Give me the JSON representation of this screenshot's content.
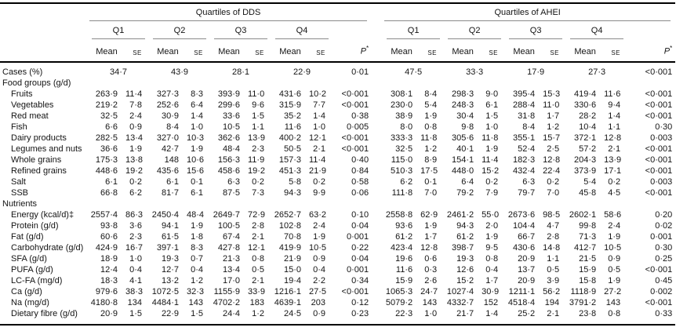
{
  "table": {
    "groups": [
      {
        "key": "dds",
        "label": "Quartiles of DDS"
      },
      {
        "key": "ahei",
        "label": "Quartiles of AHEI"
      }
    ],
    "quartiles": [
      "Q1",
      "Q2",
      "Q3",
      "Q4"
    ],
    "mean_header": "Mean",
    "se_header": "SE",
    "p_header": {
      "text": "P",
      "sup": "*"
    },
    "rows": [
      {
        "type": "cases",
        "label": "Cases (%)",
        "dds": [
          "34·7",
          "43·9",
          "28·1",
          "22·9"
        ],
        "dds_p": "0·01",
        "ahei": [
          "47·5",
          "33·3",
          "17·9",
          "27·3"
        ],
        "ahei_p": "<0·001"
      },
      {
        "type": "section",
        "label": "Food groups (g/d)"
      },
      {
        "type": "item",
        "label": "Fruits",
        "dds": [
          "263·9",
          "11·4",
          "327·3",
          "8·3",
          "393·9",
          "11·0",
          "431·6",
          "10·2"
        ],
        "dds_p": "<0·001",
        "ahei": [
          "308·1",
          "8·4",
          "298·3",
          "9·0",
          "395·4",
          "15·3",
          "419·4",
          "11·6"
        ],
        "ahei_p": "<0·001"
      },
      {
        "type": "item",
        "label": "Vegetables",
        "dds": [
          "219·2",
          "7·8",
          "252·6",
          "6·4",
          "299·6",
          "9·6",
          "315·9",
          "7·7"
        ],
        "dds_p": "<0·001",
        "ahei": [
          "230·0",
          "5·4",
          "248·3",
          "6·1",
          "288·4",
          "11·0",
          "330·6",
          "9·4"
        ],
        "ahei_p": "<0·001"
      },
      {
        "type": "item",
        "label": "Red meat",
        "dds": [
          "32·5",
          "2·4",
          "30·9",
          "1·4",
          "33·6",
          "1·5",
          "35·2",
          "1·4"
        ],
        "dds_p": "0·38",
        "ahei": [
          "38·9",
          "1·9",
          "30·4",
          "1·5",
          "31·8",
          "1·7",
          "28·2",
          "1·4"
        ],
        "ahei_p": "<0·001"
      },
      {
        "type": "item",
        "label": "Fish",
        "dds": [
          "6·6",
          "0·9",
          "8·4",
          "1·0",
          "10·5",
          "1·1",
          "11·6",
          "1·0"
        ],
        "dds_p": "0·005",
        "ahei": [
          "8·0",
          "0·8",
          "9·8",
          "1·0",
          "8·4",
          "1·2",
          "10·4",
          "1·1"
        ],
        "ahei_p": "0·30"
      },
      {
        "type": "item",
        "label": "Dairy products",
        "dds": [
          "282·5",
          "13·4",
          "327·0",
          "10·3",
          "362·6",
          "13·9",
          "400·2",
          "12·1"
        ],
        "dds_p": "<0·001",
        "ahei": [
          "333·3",
          "11·8",
          "305·6",
          "11·8",
          "355·1",
          "15·7",
          "372·1",
          "12·8"
        ],
        "ahei_p": "0·003"
      },
      {
        "type": "item",
        "label": "Legumes and nuts",
        "dds": [
          "36·6",
          "1·9",
          "42·7",
          "1·9",
          "48·4",
          "2·3",
          "50·5",
          "2·1"
        ],
        "dds_p": "<0·001",
        "ahei": [
          "32·5",
          "1·2",
          "40·1",
          "1·9",
          "52·4",
          "2·5",
          "57·2",
          "2·1"
        ],
        "ahei_p": "<0·001"
      },
      {
        "type": "item",
        "label": "Whole grains",
        "dds": [
          "175·3",
          "13·8",
          "148",
          "10·6",
          "156·3",
          "11·9",
          "157·3",
          "11·4"
        ],
        "dds_p": "0·40",
        "ahei": [
          "115·0",
          "8·9",
          "154·1",
          "11·4",
          "182·3",
          "12·8",
          "204·3",
          "13·9"
        ],
        "ahei_p": "<0·001"
      },
      {
        "type": "item",
        "label": "Refined grains",
        "dds": [
          "448·6",
          "19·2",
          "435·6",
          "15·6",
          "458·6",
          "19·2",
          "451·3",
          "21·9"
        ],
        "dds_p": "0·84",
        "ahei": [
          "510·3",
          "17·5",
          "448·0",
          "15·2",
          "432·4",
          "22·4",
          "373·9",
          "17·1"
        ],
        "ahei_p": "<0·001"
      },
      {
        "type": "item",
        "label": "Salt",
        "dds": [
          "6·1",
          "0·2",
          "6·1",
          "0·1",
          "6·3",
          "0·2",
          "5·8",
          "0·2"
        ],
        "dds_p": "0·58",
        "ahei": [
          "6·2",
          "0·1",
          "6·4",
          "0·2",
          "6·3",
          "0·2",
          "5·4",
          "0·2"
        ],
        "ahei_p": "0·003"
      },
      {
        "type": "item",
        "label": "SSB",
        "dds": [
          "66·8",
          "6·2",
          "81·7",
          "6·1",
          "87·5",
          "7·3",
          "94·3",
          "9·9"
        ],
        "dds_p": "0·06",
        "ahei": [
          "111·8",
          "7·0",
          "79·2",
          "7·9",
          "79·7",
          "7·0",
          "45·8",
          "4·5"
        ],
        "ahei_p": "<0·001"
      },
      {
        "type": "section",
        "label": "Nutrients"
      },
      {
        "type": "item",
        "label": "Energy (kcal/d)‡",
        "dds": [
          "2557·4",
          "86·3",
          "2450·4",
          "48·4",
          "2649·7",
          "72·9",
          "2652·7",
          "63·2"
        ],
        "dds_p": "0·10",
        "ahei": [
          "2558·8",
          "62·9",
          "2461·2",
          "55·0",
          "2673·6",
          "98·5",
          "2602·1",
          "58·6"
        ],
        "ahei_p": "0·20"
      },
      {
        "type": "item",
        "label": "Protein (g/d)",
        "dds": [
          "93·8",
          "3·6",
          "94·1",
          "1·9",
          "100·5",
          "2·8",
          "102·8",
          "2·4"
        ],
        "dds_p": "0·04",
        "ahei": [
          "93·6",
          "1·9",
          "94·3",
          "2·0",
          "104·4",
          "4·7",
          "99·8",
          "2·4"
        ],
        "ahei_p": "0·02"
      },
      {
        "type": "item",
        "label": "Fat (g/d)",
        "dds": [
          "60·6",
          "2·3",
          "61·5",
          "1·8",
          "67·4",
          "2·1",
          "70·8",
          "1·9"
        ],
        "dds_p": "0·001",
        "ahei": [
          "61·2",
          "1·7",
          "61·2",
          "1·9",
          "66·7",
          "2·8",
          "71·3",
          "1·9"
        ],
        "ahei_p": "0·001"
      },
      {
        "type": "item",
        "label": "Carbohydrate (g/d)",
        "dds": [
          "424·9",
          "16·7",
          "397·1",
          "8·3",
          "427·8",
          "12·1",
          "419·9",
          "10·5"
        ],
        "dds_p": "0·22",
        "ahei": [
          "423·4",
          "12·8",
          "398·7",
          "9·5",
          "430·6",
          "14·8",
          "412·7",
          "10·5"
        ],
        "ahei_p": "0·30"
      },
      {
        "type": "item",
        "label": "SFA (g/d)",
        "dds": [
          "18·9",
          "1·0",
          "19·3",
          "0·7",
          "21·3",
          "0·8",
          "21·9",
          "0·9"
        ],
        "dds_p": "0·04",
        "ahei": [
          "19·6",
          "0·6",
          "19·3",
          "0·8",
          "20·9",
          "1·1",
          "21·5",
          "0·9"
        ],
        "ahei_p": "0·25"
      },
      {
        "type": "item",
        "label": "PUFA (g/d)",
        "dds": [
          "12·4",
          "0·4",
          "12·7",
          "0·4",
          "13·4",
          "0·5",
          "15·0",
          "0·4"
        ],
        "dds_p": "0·001",
        "ahei": [
          "11·6",
          "0·3",
          "12·6",
          "0·4",
          "13·7",
          "0·5",
          "15·9",
          "0·5"
        ],
        "ahei_p": "<0·001"
      },
      {
        "type": "item",
        "label": "LC-FA (mg/d)",
        "dds": [
          "18·3",
          "4·1",
          "13·2",
          "1·2",
          "17·0",
          "2·1",
          "19·4",
          "2·2"
        ],
        "dds_p": "0·34",
        "ahei": [
          "15·9",
          "2·6",
          "15·2",
          "1·7",
          "20·9",
          "3·9",
          "15·8",
          "1·9"
        ],
        "ahei_p": "0·45"
      },
      {
        "type": "item",
        "label": "Ca (g/d)",
        "dds": [
          "979·6",
          "38·3",
          "1072·5",
          "32·3",
          "1155·9",
          "33·9",
          "1216·1",
          "27·5"
        ],
        "dds_p": "<0·001",
        "ahei": [
          "1065·3",
          "24·7",
          "1027·4",
          "30·9",
          "1211·1",
          "56·2",
          "1118·9",
          "27·2"
        ],
        "ahei_p": "0·002"
      },
      {
        "type": "item",
        "label": "Na (mg/d)",
        "dds": [
          "4180·8",
          "134",
          "4484·1",
          "143",
          "4702·2",
          "183",
          "4639·1",
          "203"
        ],
        "dds_p": "0·12",
        "ahei": [
          "5079·2",
          "143",
          "4332·7",
          "152",
          "4518·4",
          "194",
          "3791·2",
          "143"
        ],
        "ahei_p": "<0·001"
      },
      {
        "type": "item",
        "label": "Dietary fibre (g/d)",
        "dds": [
          "20·9",
          "1·5",
          "22·9",
          "1·5",
          "24·4",
          "1·2",
          "24·5",
          "0·9"
        ],
        "dds_p": "0·23",
        "ahei": [
          "22·3",
          "1·0",
          "21·7",
          "1·4",
          "25·2",
          "2·1",
          "23·8",
          "0·8"
        ],
        "ahei_p": "0·33"
      }
    ]
  }
}
